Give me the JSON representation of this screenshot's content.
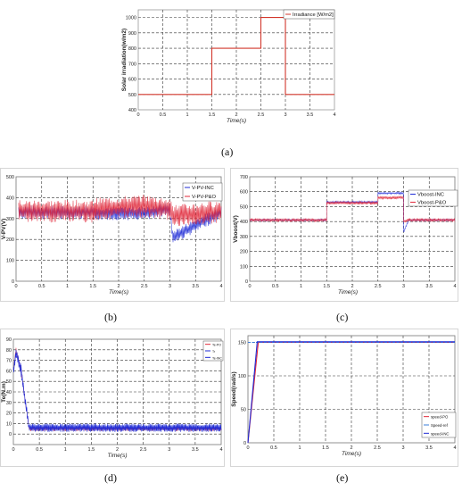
{
  "colors": {
    "irradiance": "#d2372c",
    "inc": "#1f2bd6",
    "po": "#e0283a",
    "grid": "#333333",
    "ref": "#3a7dd8",
    "axis": "#222222"
  },
  "captions": {
    "a": "(a)",
    "b": "(b)",
    "c": "(c)",
    "d": "(d)",
    "e": "(e)"
  },
  "chart_data": [
    {
      "id": "a",
      "type": "line",
      "title": "",
      "xlabel": "Time(s)",
      "ylabel": "Solar irradiation(w/m2)",
      "xlim": [
        0,
        4
      ],
      "ylim": [
        400,
        1050
      ],
      "xticks": [
        "0",
        "0.5",
        "1",
        "1.5",
        "2",
        "2.5",
        "3",
        "3.5",
        "4"
      ],
      "yticks": [
        "400",
        "500",
        "600",
        "700",
        "800",
        "900",
        "1000"
      ],
      "grid": true,
      "legend_position": "top-right",
      "series": [
        {
          "name": "Irradiance [W/m2]",
          "x": [
            0,
            1.5,
            1.5,
            2.5,
            2.5,
            3,
            3,
            4
          ],
          "y": [
            500,
            500,
            800,
            800,
            1000,
            1000,
            500,
            500
          ]
        }
      ]
    },
    {
      "id": "b",
      "type": "line",
      "title": "",
      "xlabel": "Time(s)",
      "ylabel": "V-PV(V)",
      "xlim": [
        0,
        4
      ],
      "ylim": [
        0,
        500
      ],
      "xticks": [
        "0",
        "0.5",
        "1",
        "1.5",
        "2",
        "2.5",
        "3",
        "3.5",
        "4"
      ],
      "yticks": [
        "0",
        "100",
        "200",
        "300",
        "400",
        "500"
      ],
      "grid": true,
      "legend_position": "top-right",
      "series": [
        {
          "name": "V-PV-INC",
          "x": [
            0.05,
            1.5,
            1.55,
            2.5,
            3.0,
            3.05,
            4
          ],
          "y": [
            330,
            330,
            325,
            325,
            345,
            210,
            330
          ]
        },
        {
          "name": "V-PV-P&O",
          "x": [
            0.05,
            1.5,
            1.55,
            2.5,
            3.0,
            3.05,
            4
          ],
          "y": [
            335,
            335,
            345,
            360,
            345,
            310,
            335
          ]
        }
      ]
    },
    {
      "id": "c",
      "type": "line",
      "title": "",
      "xlabel": "Time(s)",
      "ylabel": "Vboost(V)",
      "xlim": [
        0,
        4
      ],
      "ylim": [
        0,
        700
      ],
      "xticks": [
        "0",
        "0.5",
        "1",
        "1.5",
        "2",
        "2.5",
        "3",
        "3.5",
        "4"
      ],
      "yticks": [
        "0",
        "100",
        "200",
        "300",
        "400",
        "500",
        "600",
        "700"
      ],
      "grid": true,
      "legend_position": "top-right",
      "series": [
        {
          "name": "Vboost-INC",
          "x": [
            0,
            1.5,
            1.5,
            2.5,
            2.5,
            3,
            3,
            3.1,
            4
          ],
          "y": [
            410,
            410,
            530,
            530,
            590,
            590,
            330,
            410,
            410
          ]
        },
        {
          "name": "Vboost-P&O",
          "x": [
            0,
            1.5,
            1.5,
            2.5,
            2.5,
            3,
            3,
            3.1,
            4
          ],
          "y": [
            410,
            410,
            525,
            525,
            560,
            560,
            400,
            410,
            410
          ]
        }
      ]
    },
    {
      "id": "d",
      "type": "line",
      "title": "",
      "xlabel": "Time(s)",
      "ylabel": "Te(N.m)",
      "xlim": [
        0,
        4
      ],
      "ylim": [
        -10,
        90
      ],
      "xticks": [
        "0",
        "0.5",
        "1",
        "1.5",
        "2",
        "2.5",
        "3",
        "3.5",
        "4"
      ],
      "yticks": [
        "0",
        "10",
        "20",
        "30",
        "40",
        "50",
        "60",
        "70",
        "80",
        "90"
      ],
      "grid": true,
      "legend_position": "top-right",
      "series": [
        {
          "name": "Te-PO",
          "x": [
            0,
            0.05,
            0.15,
            0.3,
            4
          ],
          "y": [
            60,
            80,
            60,
            5,
            5
          ]
        },
        {
          "name": "Tr",
          "x": [
            0,
            0.05,
            0.15,
            0.3,
            4
          ],
          "y": [
            60,
            78,
            62,
            6,
            6
          ]
        },
        {
          "name": "Te-INC",
          "x": [
            0,
            0.05,
            0.15,
            0.3,
            4
          ],
          "y": [
            58,
            76,
            58,
            6,
            6
          ]
        }
      ]
    },
    {
      "id": "e",
      "type": "line",
      "title": "",
      "xlabel": "Time(s)",
      "ylabel": "Speed(rad/s)",
      "xlim": [
        0,
        4
      ],
      "ylim": [
        0,
        160
      ],
      "xticks": [
        "0",
        "0.5",
        "1",
        "1.5",
        "2",
        "2.5",
        "3",
        "3.5",
        "4"
      ],
      "yticks": [
        "0",
        "50",
        "100",
        "150"
      ],
      "grid": true,
      "legend_position": "bottom-right",
      "series": [
        {
          "name": "speed-PO",
          "x": [
            0,
            0.2,
            4
          ],
          "y": [
            0,
            150,
            150
          ]
        },
        {
          "name": "Speed-ref",
          "x": [
            0,
            4
          ],
          "y": [
            150,
            150
          ]
        },
        {
          "name": "speed-INC",
          "x": [
            0,
            0.18,
            4
          ],
          "y": [
            0,
            151,
            151
          ]
        }
      ]
    }
  ]
}
